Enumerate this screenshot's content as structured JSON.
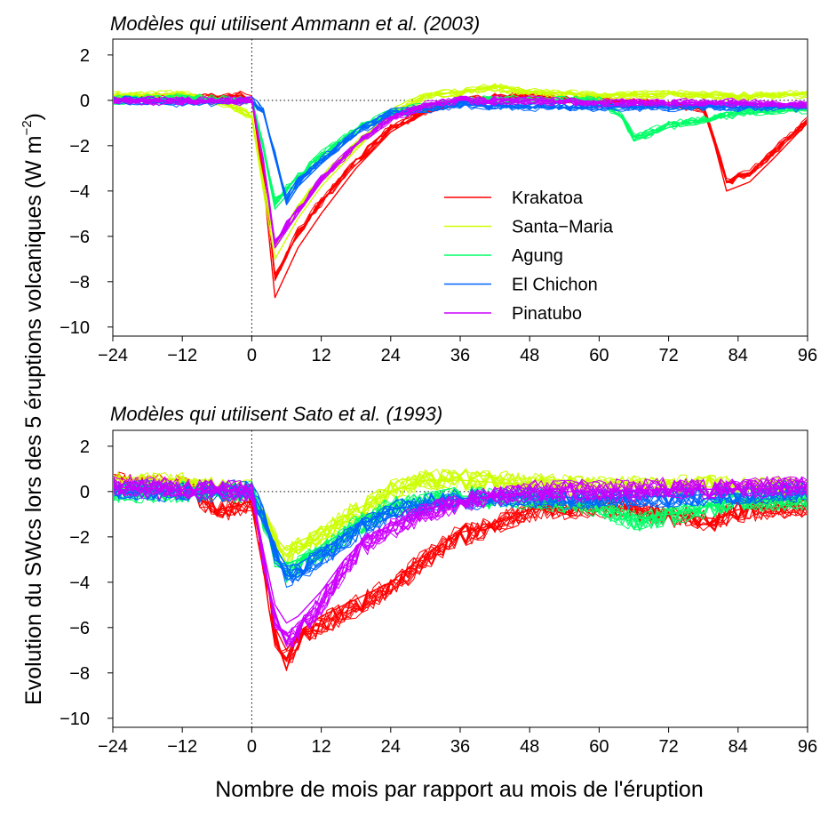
{
  "figure": {
    "ylabel_main": "Evolution du SWcs lors des 5 éruptions volcaniques (W m",
    "ylabel_sup": "−2",
    "ylabel_close": ")",
    "xlabel": "Nombre de mois par rapport au mois de l'éruption"
  },
  "legend": [
    {
      "name": "Krakatoa",
      "color": "#ff0000"
    },
    {
      "name": "Santa−Maria",
      "color": "#ccff00"
    },
    {
      "name": "Agung",
      "color": "#00ff66"
    },
    {
      "name": "El Chichon",
      "color": "#0066ff"
    },
    {
      "name": "Pinatubo",
      "color": "#cc00ff"
    }
  ],
  "chart_data": [
    {
      "type": "line",
      "title": "Modèles qui utilisent Ammann et al. (2003)",
      "xlabel": "Nombre de mois par rapport au mois de l'éruption",
      "ylabel": "Evolution du SWcs lors des 5 éruptions volcaniques (W m−2)",
      "xlim": [
        -24,
        96
      ],
      "ylim": [
        -10,
        2
      ],
      "xticks": [
        "−24",
        "−12",
        "0",
        "12",
        "24",
        "36",
        "48",
        "60",
        "72",
        "84",
        "96"
      ],
      "yticks": [
        "2",
        "0",
        "−2",
        "−4",
        "−6",
        "−8",
        "−10"
      ],
      "reference_lines": {
        "x": 0,
        "y": 0,
        "style": "dotted"
      },
      "legend_position": "center-right",
      "series": [
        {
          "name": "Krakatoa",
          "color": "#ff0000",
          "x": [
            -24,
            -12,
            -2,
            0,
            2,
            4,
            8,
            12,
            18,
            24,
            30,
            36,
            48,
            60,
            72,
            78,
            80,
            82,
            86,
            90,
            96
          ],
          "y": [
            0.1,
            0.1,
            0.2,
            0.0,
            -3.5,
            -8.7,
            -6.5,
            -5.0,
            -3.0,
            -1.4,
            -0.5,
            0.0,
            0.2,
            0.0,
            -0.2,
            -0.4,
            -2.0,
            -4.0,
            -3.6,
            -2.6,
            -1.0
          ]
        },
        {
          "name": "Santa−Maria",
          "color": "#ccff00",
          "x": [
            -24,
            -12,
            -4,
            0,
            2,
            4,
            8,
            12,
            18,
            24,
            30,
            36,
            42,
            48,
            60,
            72,
            84,
            96
          ],
          "y": [
            0.2,
            0.3,
            -0.2,
            -0.8,
            -4.0,
            -7.0,
            -5.2,
            -3.8,
            -2.2,
            -0.6,
            0.2,
            0.4,
            0.6,
            0.4,
            0.2,
            0.3,
            0.2,
            0.3
          ]
        },
        {
          "name": "Agung",
          "color": "#00ff66",
          "x": [
            -24,
            -12,
            0,
            2,
            4,
            8,
            12,
            18,
            24,
            36,
            48,
            60,
            64,
            66,
            68,
            72,
            80,
            84,
            90,
            96
          ],
          "y": [
            0.0,
            0.1,
            0.0,
            -2.2,
            -4.8,
            -3.6,
            -2.6,
            -1.4,
            -0.6,
            0.0,
            0.0,
            0.0,
            -0.8,
            -1.8,
            -1.6,
            -1.2,
            -0.8,
            -0.6,
            -0.5,
            -0.4
          ]
        },
        {
          "name": "El Chichon",
          "color": "#0066ff",
          "x": [
            -24,
            -12,
            0,
            2,
            4,
            6,
            8,
            12,
            18,
            24,
            36,
            48,
            60,
            72,
            84,
            96
          ],
          "y": [
            0.0,
            -0.1,
            0.0,
            -0.5,
            -2.5,
            -4.6,
            -3.8,
            -2.8,
            -1.5,
            -0.6,
            -0.2,
            -0.3,
            -0.3,
            -0.3,
            -0.3,
            -0.3
          ]
        },
        {
          "name": "Pinatubo",
          "color": "#cc00ff",
          "x": [
            -24,
            -12,
            0,
            2,
            4,
            8,
            12,
            18,
            24,
            30,
            36,
            48,
            60,
            72,
            84,
            96
          ],
          "y": [
            0.0,
            0.0,
            0.0,
            -2.8,
            -6.5,
            -5.0,
            -3.6,
            -2.0,
            -0.8,
            -0.2,
            0.0,
            0.0,
            -0.1,
            -0.1,
            -0.1,
            -0.2
          ]
        }
      ]
    },
    {
      "type": "line",
      "title": "Modèles qui utilisent Sato et al. (1993)",
      "xlabel": "Nombre de mois par rapport au mois de l'éruption",
      "ylabel": "Evolution du SWcs lors des 5 éruptions volcaniques (W m−2)",
      "xlim": [
        -24,
        96
      ],
      "ylim": [
        -10,
        2
      ],
      "xticks": [
        "−24",
        "−12",
        "0",
        "12",
        "24",
        "36",
        "48",
        "60",
        "72",
        "84",
        "96"
      ],
      "yticks": [
        "2",
        "0",
        "−2",
        "−4",
        "−6",
        "−8",
        "−10"
      ],
      "reference_lines": {
        "x": 0,
        "y": 0,
        "style": "dotted"
      },
      "series": [
        {
          "name": "Krakatoa",
          "color": "#ff0000",
          "x": [
            -24,
            -12,
            -6,
            -2,
            0,
            2,
            4,
            6,
            8,
            12,
            16,
            20,
            24,
            30,
            36,
            40,
            48,
            60,
            72,
            80,
            84,
            90,
            96
          ],
          "y": [
            0.4,
            0.2,
            -0.8,
            -0.6,
            -0.4,
            -3.0,
            -6.0,
            -7.0,
            -6.2,
            -5.5,
            -5.0,
            -4.5,
            -4.0,
            -2.8,
            -1.8,
            -1.6,
            -0.8,
            -0.6,
            -1.0,
            -1.2,
            -0.8,
            -0.7,
            -0.6
          ]
        },
        {
          "name": "Santa−Maria",
          "color": "#ccff00",
          "x": [
            -24,
            -12,
            0,
            2,
            4,
            6,
            8,
            12,
            18,
            24,
            30,
            36,
            48,
            60,
            72,
            84,
            96
          ],
          "y": [
            0.3,
            0.3,
            0.0,
            -1.0,
            -2.0,
            -2.6,
            -2.2,
            -1.8,
            -0.8,
            0.0,
            0.5,
            0.5,
            0.3,
            0.2,
            0.2,
            0.2,
            0.2
          ]
        },
        {
          "name": "Agung",
          "color": "#00ff66",
          "x": [
            -24,
            -12,
            0,
            2,
            4,
            6,
            8,
            12,
            18,
            24,
            36,
            48,
            60,
            66,
            72,
            84,
            96
          ],
          "y": [
            0.0,
            0.0,
            0.0,
            -1.2,
            -2.6,
            -3.2,
            -3.0,
            -2.4,
            -1.4,
            -0.6,
            -0.2,
            -0.3,
            -0.6,
            -1.2,
            -1.0,
            -0.4,
            -0.3
          ]
        },
        {
          "name": "El Chichon",
          "color": "#0066ff",
          "x": [
            -24,
            -12,
            0,
            2,
            4,
            6,
            8,
            12,
            18,
            24,
            36,
            48,
            60,
            72,
            84,
            96
          ],
          "y": [
            0.1,
            0.0,
            0.0,
            -1.0,
            -2.4,
            -3.3,
            -3.2,
            -2.6,
            -1.6,
            -0.8,
            -0.3,
            -0.2,
            -0.3,
            -0.2,
            -0.1,
            0.0
          ]
        },
        {
          "name": "Pinatubo",
          "color": "#cc00ff",
          "x": [
            -24,
            -12,
            0,
            2,
            4,
            6,
            8,
            12,
            16,
            20,
            24,
            30,
            36,
            48,
            60,
            72,
            84,
            96
          ],
          "y": [
            0.2,
            0.1,
            0.0,
            -2.6,
            -5.0,
            -5.8,
            -5.5,
            -4.4,
            -3.0,
            -2.0,
            -1.5,
            -0.8,
            -0.4,
            0.0,
            0.0,
            0.1,
            0.1,
            0.2
          ]
        }
      ]
    }
  ]
}
